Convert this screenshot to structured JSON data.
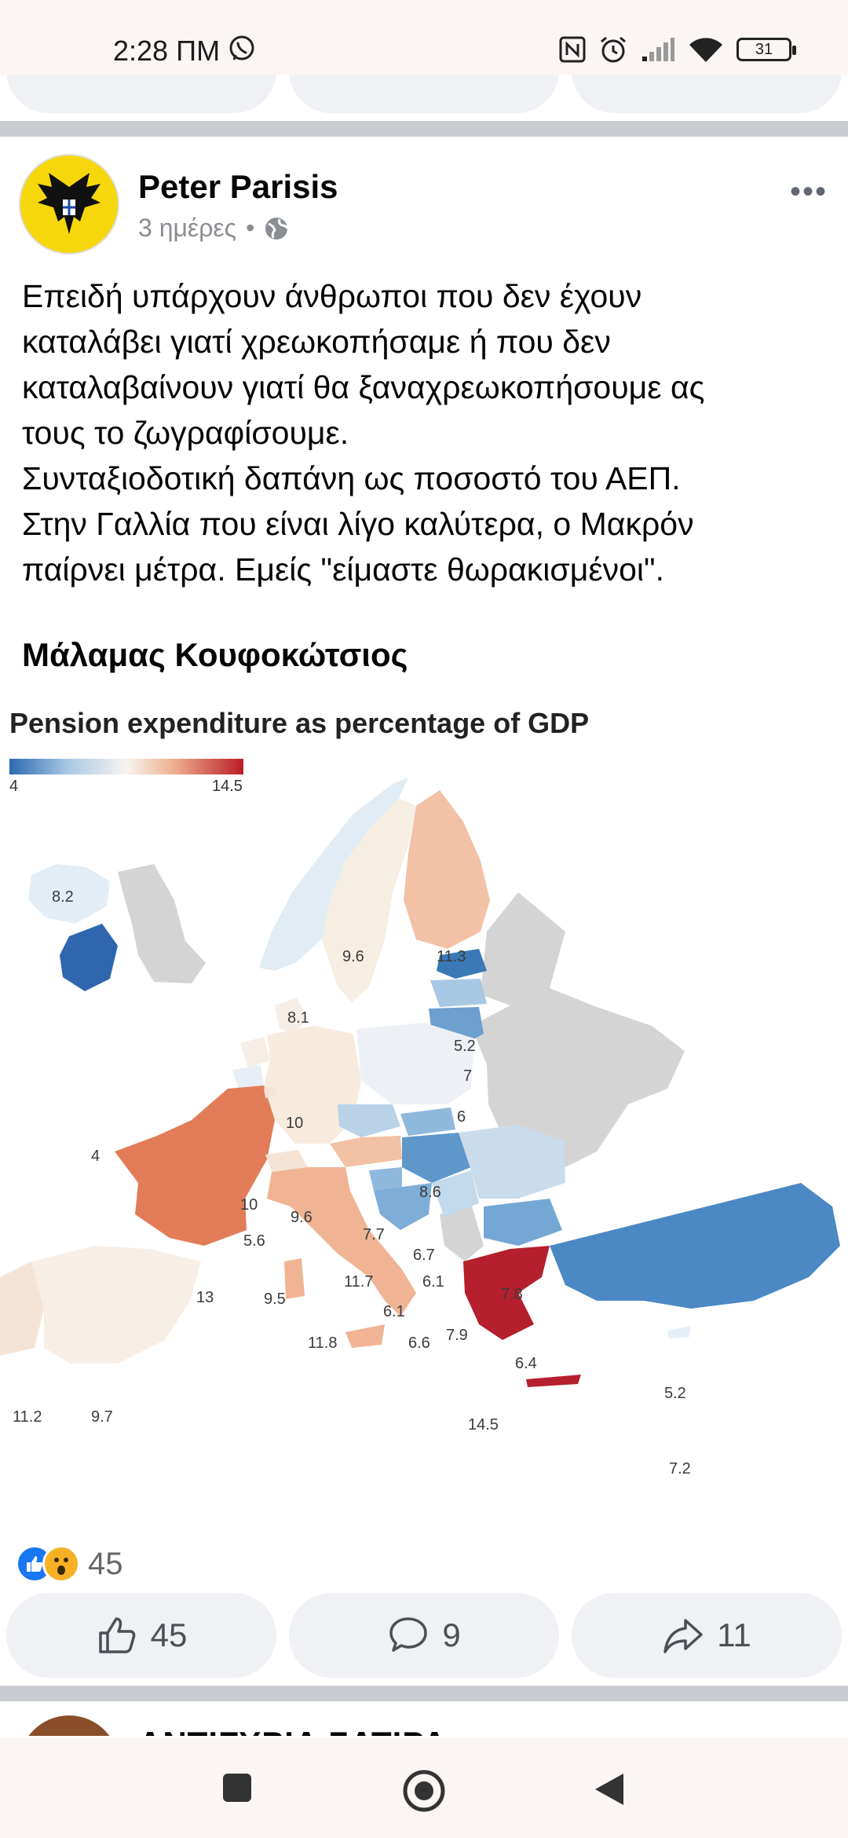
{
  "status_bar": {
    "time": "2:28 ΠΜ",
    "battery": "31",
    "icons": [
      "viber-icon",
      "nfc-icon",
      "alarm-icon",
      "signal-icon",
      "wifi-icon",
      "battery-icon"
    ]
  },
  "post": {
    "author": "Peter Parisis",
    "time": "3 ημέρες",
    "separator": "•",
    "privacy_icon": "globe-icon",
    "more_label": "•••",
    "text_lines": [
      "Επειδή υπάρχουν άνθρωποι που δεν έχουν",
      "καταλάβει γιατί χρεωκοπήσαμε ή που δεν",
      "καταλαβαίνουν γιατί θα ξαναχρεωκοπήσουμε ας",
      "τους το ζωγραφίσουμε.",
      "Συνταξιοδοτική δαπάνη ως ποσοστό του ΑΕΠ.",
      "Στην Γαλλία που είναι λίγο καλύτερα, ο Μακρόν",
      "παίρνει μέτρα. Εμείς \"είμαστε θωρακισμένοι\"."
    ],
    "signature": "Μάλαμας Κουφοκώτσιος",
    "reaction_count": "45",
    "actions": {
      "like_count": "45",
      "comment_count": "9",
      "share_count": "11"
    }
  },
  "map_image": {
    "title": "Pension expenditure as percentage of GDP",
    "legend_min": "4",
    "legend_max": "14.5",
    "legend_colors": [
      "#2c6ab0",
      "#f7f4f0",
      "#ba1d27"
    ],
    "labels": {
      "iceland": "8.2",
      "norway": "8.1",
      "sweden": "9.6",
      "finland": "11.3",
      "estonia": "5.2",
      "latvia": "7",
      "lithuania": "6",
      "denmark": "10",
      "ireland": "4",
      "netherlands": "10",
      "belgium": "5.6",
      "germany": "9.6",
      "poland": "8.6",
      "czechia": "7.7",
      "slovakia": "6.7",
      "hungary": "6.1",
      "austria": "11.7",
      "slovenia": "6.1",
      "croatia": "6.6",
      "serbia": "7.9",
      "romania": "7.8",
      "bulgaria": "6.4",
      "france": "13",
      "luxembourg": "9.5",
      "italy": "11.8",
      "greece": "14.5",
      "turkey": "5.2",
      "cyprus": "7.2",
      "portugal": "11.2",
      "spain": "9.7"
    }
  },
  "next_post": {
    "name": "ΑΝΤΙΓΥΡΙΑ ΣΑΤΙΡΑ"
  },
  "nav": {
    "icons": [
      "recents-square-icon",
      "home-circle-icon",
      "back-triangle-icon"
    ]
  }
}
